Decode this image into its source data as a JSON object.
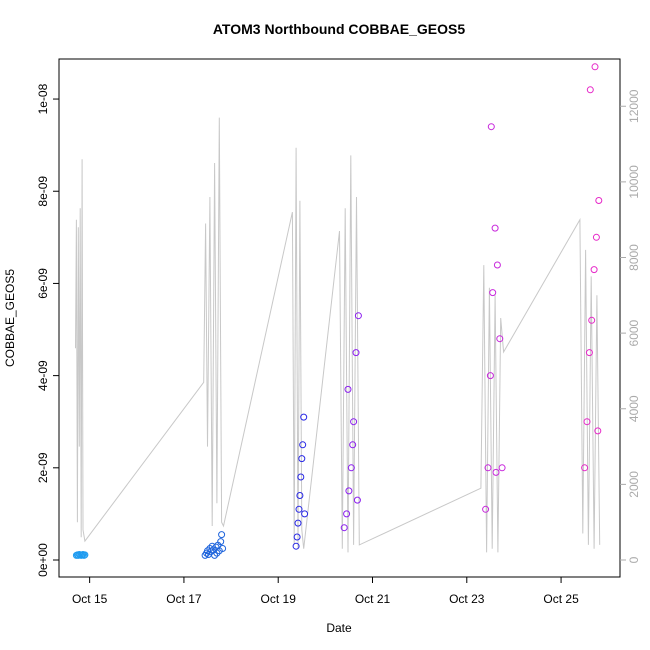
{
  "chart_data": {
    "type": "scatter",
    "title": "ATOM3 Northbound COBBAE_GEOS5",
    "xlabel": "Date",
    "ylabel": "COBBAE_GEOS5",
    "x_ticks": [
      "Oct 15",
      "Oct 17",
      "Oct 19",
      "Oct 21",
      "Oct 23",
      "Oct 25"
    ],
    "y_ticks": [
      "0e+00",
      "2e-09",
      "4e-09",
      "6e-09",
      "8e-09",
      "1e-08"
    ],
    "y2_ticks": [
      "0",
      "2000",
      "4000",
      "6000",
      "8000",
      "10000",
      "12000"
    ],
    "ylim": [
      0,
      1.05e-08
    ],
    "y2lim": [
      0,
      12800
    ],
    "xlim_days": [
      14.35,
      26.25
    ],
    "grid": false,
    "legend": "none",
    "colors": {
      "altitude_line": "#c8c8c8",
      "flight1": "#1e9bf0",
      "flight2": "#1e64dc",
      "flight3": "#2828e6",
      "flight4": "#8c1ef0",
      "flight5": "#c828dc",
      "flight6": "#e628c8",
      "tick_right": "#aaaaaa"
    },
    "series": [
      {
        "name": "",
        "color": "#1e9bf0",
        "x": [
          14.72,
          14.74,
          14.76,
          14.78,
          14.8,
          14.82,
          14.84,
          14.86,
          14.88,
          14.9
        ],
        "y": [
          1e-10,
          1.1e-10,
          1e-10,
          1.2e-10,
          1.1e-10,
          1e-10,
          1.1e-10,
          1.2e-10,
          1e-10,
          1.1e-10
        ]
      },
      {
        "name": "",
        "color": "#1e64dc",
        "x": [
          17.45,
          17.48,
          17.5,
          17.52,
          17.55,
          17.57,
          17.6,
          17.62,
          17.65,
          17.68,
          17.7,
          17.72,
          17.75,
          17.78,
          17.8,
          17.82
        ],
        "y": [
          1e-10,
          1.5e-10,
          2e-10,
          1.2e-10,
          2.5e-10,
          1.8e-10,
          3e-10,
          2.2e-10,
          1e-10,
          2.8e-10,
          1.5e-10,
          3.2e-10,
          2e-10,
          4e-10,
          5.5e-10,
          2.5e-10
        ]
      },
      {
        "name": "",
        "color": "#2828e6",
        "x": [
          19.38,
          19.4,
          19.42,
          19.44,
          19.46,
          19.48,
          19.5,
          19.52,
          19.54,
          19.56
        ],
        "y": [
          3e-10,
          5e-10,
          8e-10,
          1.1e-09,
          1.4e-09,
          1.8e-09,
          2.2e-09,
          2.5e-09,
          3.1e-09,
          1e-09
        ]
      },
      {
        "name": "",
        "color": "#8c1ef0",
        "x": [
          20.4,
          20.45,
          20.5,
          20.55,
          20.6,
          20.65,
          20.7,
          20.48,
          20.58,
          20.68
        ],
        "y": [
          7e-10,
          1e-09,
          1.5e-09,
          2e-09,
          3e-09,
          4.5e-09,
          5.3e-09,
          3.7e-09,
          2.5e-09,
          1.3e-09
        ]
      },
      {
        "name": "",
        "color": "#c828dc",
        "x": [
          23.4,
          23.45,
          23.5,
          23.55,
          23.6,
          23.65,
          23.7,
          23.75,
          23.52,
          23.62
        ],
        "y": [
          1.1e-09,
          2e-09,
          4e-09,
          5.8e-09,
          7.2e-09,
          6.4e-09,
          4.8e-09,
          2e-09,
          9.4e-09,
          1.9e-09
        ]
      },
      {
        "name": "",
        "color": "#e628c8",
        "x": [
          25.5,
          25.55,
          25.6,
          25.65,
          25.7,
          25.75,
          25.8,
          25.62,
          25.72,
          25.78
        ],
        "y": [
          2e-09,
          3e-09,
          4.5e-09,
          5.2e-09,
          6.3e-09,
          7e-09,
          7.8e-09,
          1.02e-08,
          1.07e-08,
          2.8e-09
        ]
      }
    ],
    "altitude": {
      "x": [
        14.7,
        14.72,
        14.74,
        14.76,
        14.78,
        14.8,
        14.82,
        14.84,
        14.86,
        14.9,
        17.42,
        17.46,
        17.5,
        17.55,
        17.6,
        17.65,
        17.7,
        17.75,
        17.8,
        17.84,
        19.3,
        19.34,
        19.38,
        19.42,
        19.46,
        19.5,
        19.54,
        20.3,
        20.36,
        20.42,
        20.48,
        20.54,
        20.6,
        20.66,
        20.72,
        23.3,
        23.36,
        23.42,
        23.48,
        23.54,
        23.6,
        23.66,
        23.72,
        23.78,
        25.4,
        25.46,
        25.52,
        25.58,
        25.64,
        25.7,
        25.76,
        25.82
      ],
      "y": [
        5600,
        9000,
        1000,
        8800,
        3000,
        9300,
        600,
        10600,
        800,
        500,
        4700,
        8900,
        3000,
        9600,
        900,
        10500,
        1500,
        11700,
        1000,
        900,
        9200,
        400,
        10900,
        300,
        9500,
        800,
        300,
        8700,
        300,
        9300,
        200,
        10700,
        400,
        9600,
        400,
        1900,
        7800,
        200,
        7200,
        300,
        7000,
        200,
        6400,
        5500,
        9000,
        700,
        8200,
        400,
        7500,
        300,
        7000,
        400
      ]
    }
  }
}
